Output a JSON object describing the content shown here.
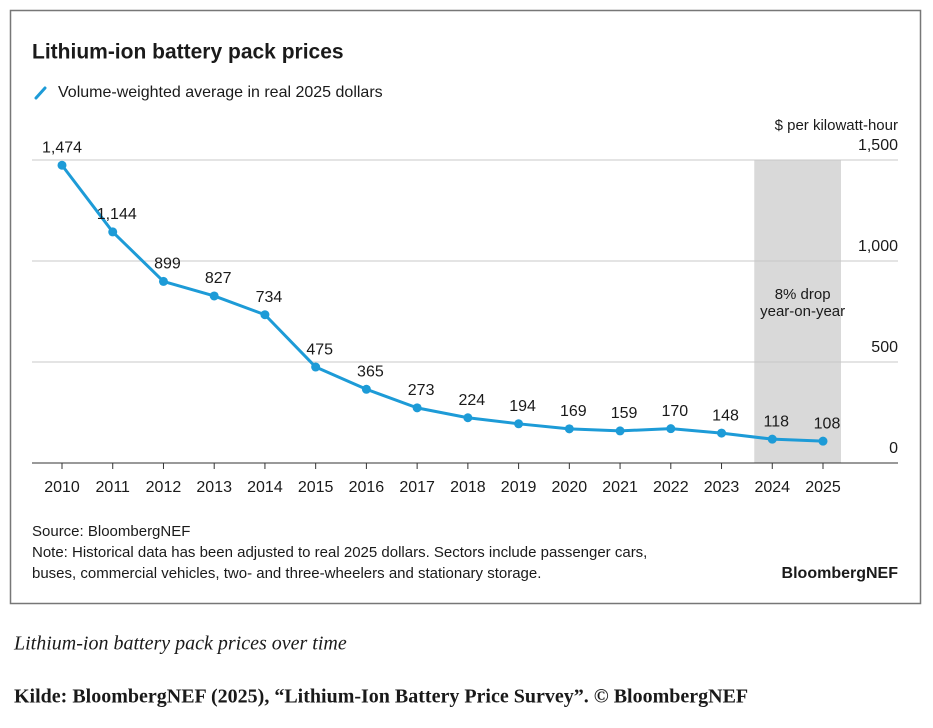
{
  "chart_data": {
    "type": "line",
    "title": "Lithium-ion battery pack prices",
    "y_axis_label": "$ per kilowatt-hour",
    "categories": [
      "2010",
      "2011",
      "2012",
      "2013",
      "2014",
      "2015",
      "2016",
      "2017",
      "2018",
      "2019",
      "2020",
      "2021",
      "2022",
      "2023",
      "2024",
      "2025"
    ],
    "series": [
      {
        "name": "Volume-weighted average in real 2025 dollars",
        "color": "#1d9bd7",
        "values": [
          1474,
          1144,
          899,
          827,
          734,
          475,
          365,
          273,
          224,
          194,
          169,
          159,
          170,
          148,
          118,
          108
        ],
        "value_labels": [
          "1,474",
          "1,144",
          "899",
          "827",
          "734",
          "475",
          "365",
          "273",
          "224",
          "194",
          "169",
          "159",
          "170",
          "148",
          "118",
          "108"
        ]
      }
    ],
    "ylim": [
      0,
      1500
    ],
    "yticks": [
      0,
      500,
      {
        "value": 1000,
        "label": "1,000"
      },
      {
        "value": 1500,
        "label": "1,500"
      }
    ],
    "grid": true,
    "shaded_categories": [
      "2024",
      "2025"
    ],
    "annotation": [
      "8% drop",
      "year-on-year"
    ],
    "source": "Source: BloombergNEF",
    "note": [
      "Note: Historical data has been adjusted to real 2025 dollars. Sectors include passenger cars,",
      "buses, commercial vehicles, two- and three-wheelers and stationary storage."
    ],
    "brand": "BloombergNEF"
  },
  "caption": "Lithium-ion battery pack prices over time",
  "credit": "Kilde: BloombergNEF (2025), “Lithium-Ion Battery Price Survey”. © BloombergNEF"
}
